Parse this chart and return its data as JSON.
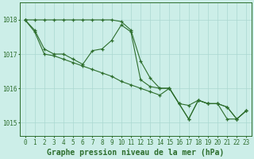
{
  "bg_color": "#cceee8",
  "grid_color": "#aad8d0",
  "line_color": "#2d6e2d",
  "xlabel": "Graphe pression niveau de la mer (hPa)",
  "xlabel_fontsize": 7.0,
  "tick_fontsize": 5.5,
  "ylim": [
    1014.6,
    1018.5
  ],
  "xlim": [
    -0.5,
    23.5
  ],
  "yticks": [
    1015,
    1016,
    1017,
    1018
  ],
  "xticks": [
    0,
    1,
    2,
    3,
    4,
    5,
    6,
    7,
    8,
    9,
    10,
    11,
    12,
    13,
    14,
    15,
    16,
    17,
    18,
    19,
    20,
    21,
    22,
    23
  ],
  "series1_x": [
    0,
    1,
    2,
    3,
    4,
    5,
    6,
    7,
    8,
    9,
    10,
    11,
    12,
    13,
    14,
    15,
    16,
    17,
    18,
    19,
    20,
    21,
    22,
    23
  ],
  "series1_y": [
    1018.0,
    1018.0,
    1018.0,
    1018.0,
    1018.0,
    1018.0,
    1018.0,
    1018.0,
    1018.0,
    1018.0,
    1017.95,
    1017.7,
    1016.8,
    1016.3,
    1016.0,
    1016.0,
    1015.55,
    1015.5,
    1015.65,
    1015.55,
    1015.55,
    1015.45,
    1015.1,
    1015.35
  ],
  "series2_x": [
    0,
    1,
    2,
    3,
    4,
    5,
    6,
    7,
    8,
    9,
    10,
    11,
    12,
    13,
    14,
    15,
    16,
    17,
    18,
    19,
    20,
    21,
    22,
    23
  ],
  "series2_y": [
    1018.0,
    1017.7,
    1017.15,
    1017.0,
    1017.0,
    1016.85,
    1016.7,
    1017.1,
    1017.15,
    1017.4,
    1017.85,
    1017.65,
    1016.25,
    1016.05,
    1016.0,
    1016.0,
    1015.55,
    1015.1,
    1015.65,
    1015.55,
    1015.55,
    1015.45,
    1015.1,
    1015.35
  ],
  "series3_x": [
    0,
    1,
    2,
    3,
    4,
    5,
    6,
    7,
    8,
    9,
    10,
    11,
    12,
    13,
    14,
    15,
    16,
    17,
    18,
    19,
    20,
    21,
    22,
    23
  ],
  "series3_y": [
    1018.0,
    1017.65,
    1017.0,
    1016.95,
    1016.85,
    1016.75,
    1016.65,
    1016.55,
    1016.45,
    1016.35,
    1016.2,
    1016.1,
    1016.0,
    1015.9,
    1015.8,
    1016.0,
    1015.55,
    1015.1,
    1015.65,
    1015.55,
    1015.55,
    1015.1,
    1015.1,
    1015.35
  ]
}
